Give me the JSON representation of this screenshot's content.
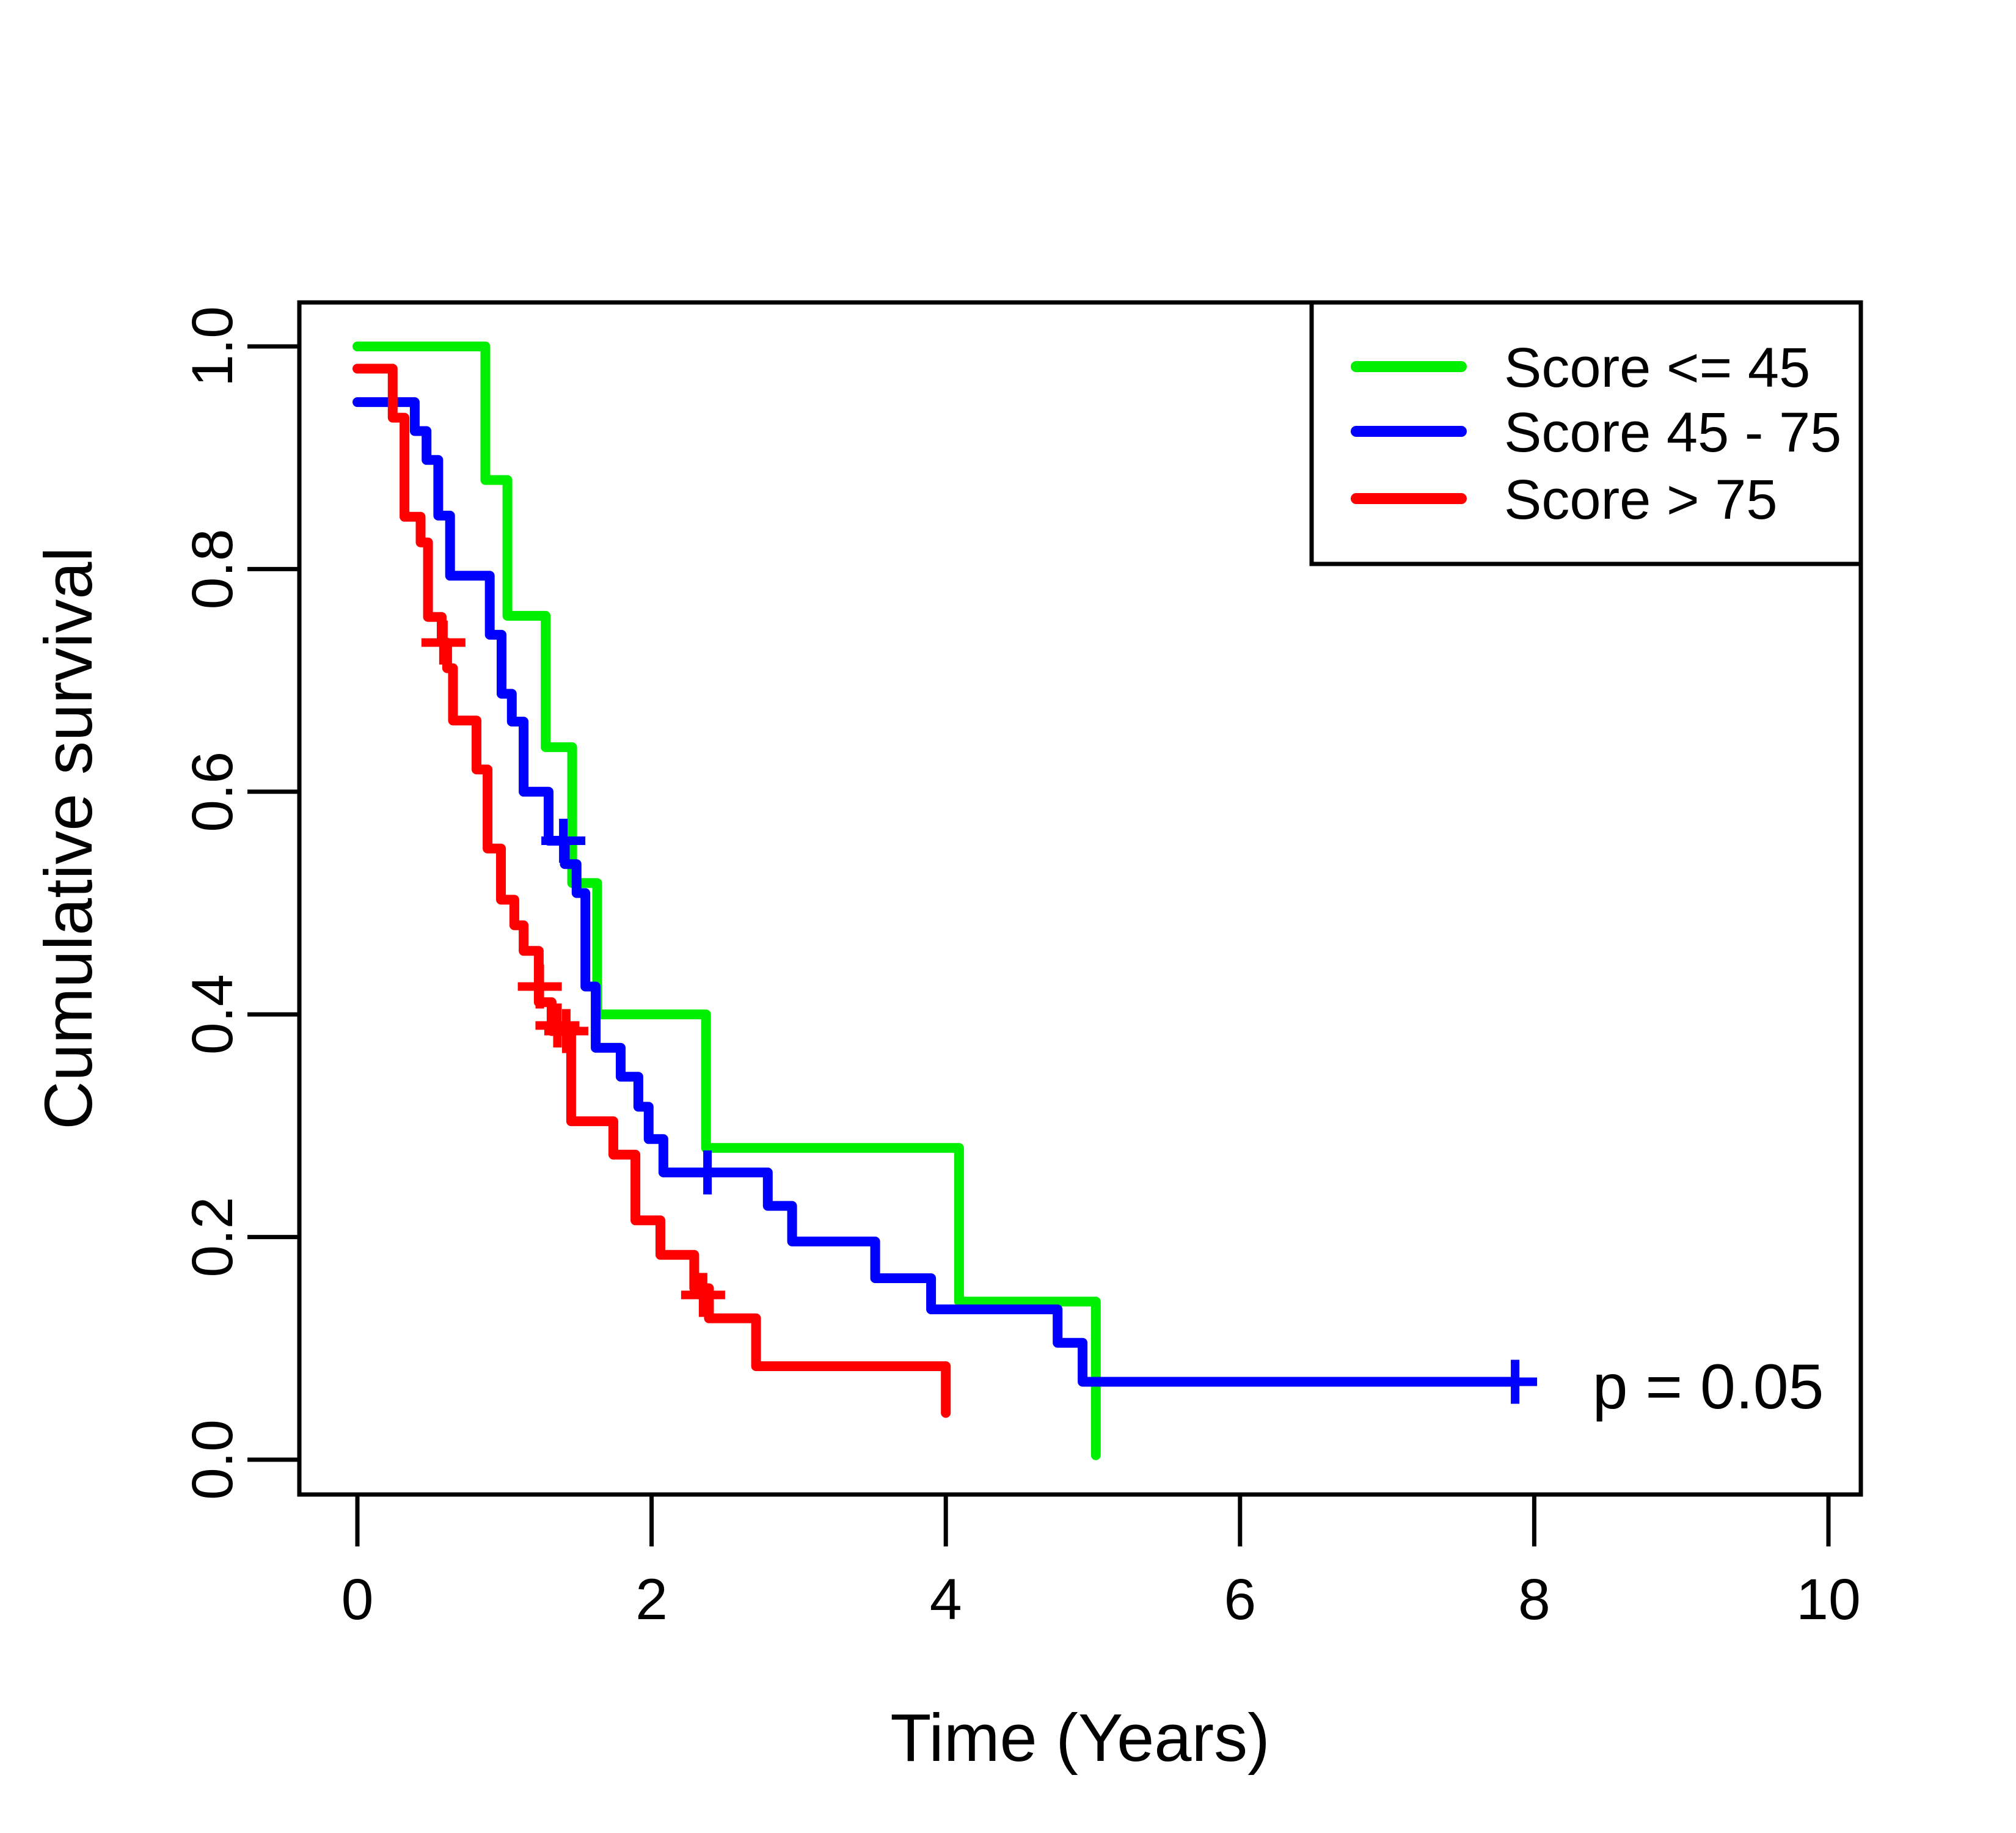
{
  "chart_data": {
    "type": "line",
    "subtype": "kaplan-meier-step-curves",
    "title": "",
    "xlabel": "Time (Years)",
    "ylabel": "Cumulative survival",
    "annotation": "p = 0.05",
    "xlim": [
      0,
      10
    ],
    "ylim": [
      0.0,
      1.0
    ],
    "x_ticks": [
      "0",
      "2",
      "4",
      "6",
      "8",
      "10"
    ],
    "x_tick_values": [
      0,
      2,
      4,
      6,
      8,
      10
    ],
    "y_ticks": [
      "0.0",
      "0.2",
      "0.4",
      "0.6",
      "0.8",
      "1.0"
    ],
    "y_tick_values": [
      0.0,
      0.2,
      0.4,
      0.6,
      0.8,
      1.0
    ],
    "grid": false,
    "legend_position": "top-right",
    "series": [
      {
        "name": "Score <= 45",
        "color": "#00ee00",
        "points": [
          [
            0,
            1.0
          ],
          [
            0.87,
            1.0
          ],
          [
            0.87,
            0.88
          ],
          [
            1.02,
            0.88
          ],
          [
            1.02,
            0.758
          ],
          [
            1.28,
            0.758
          ],
          [
            1.28,
            0.64
          ],
          [
            1.46,
            0.64
          ],
          [
            1.46,
            0.518
          ],
          [
            1.63,
            0.518
          ],
          [
            1.63,
            0.4
          ],
          [
            2.37,
            0.4
          ],
          [
            2.37,
            0.28
          ],
          [
            4.09,
            0.28
          ],
          [
            4.09,
            0.142
          ],
          [
            5.02,
            0.142
          ],
          [
            5.02,
            0.004
          ]
        ],
        "censors": []
      },
      {
        "name": "Score 45 - 75",
        "color": "#0000ff",
        "points": [
          [
            0,
            0.95
          ],
          [
            0.39,
            0.95
          ],
          [
            0.39,
            0.924
          ],
          [
            0.47,
            0.924
          ],
          [
            0.47,
            0.898
          ],
          [
            0.55,
            0.898
          ],
          [
            0.55,
            0.848
          ],
          [
            0.63,
            0.848
          ],
          [
            0.63,
            0.794
          ],
          [
            0.9,
            0.794
          ],
          [
            0.9,
            0.741
          ],
          [
            0.98,
            0.741
          ],
          [
            0.98,
            0.688
          ],
          [
            1.05,
            0.688
          ],
          [
            1.05,
            0.663
          ],
          [
            1.13,
            0.663
          ],
          [
            1.13,
            0.6
          ],
          [
            1.3,
            0.6
          ],
          [
            1.3,
            0.556
          ],
          [
            1.41,
            0.556
          ],
          [
            1.41,
            0.535
          ],
          [
            1.49,
            0.535
          ],
          [
            1.49,
            0.509
          ],
          [
            1.55,
            0.509
          ],
          [
            1.55,
            0.425
          ],
          [
            1.62,
            0.425
          ],
          [
            1.62,
            0.37
          ],
          [
            1.79,
            0.37
          ],
          [
            1.79,
            0.344
          ],
          [
            1.91,
            0.344
          ],
          [
            1.91,
            0.317
          ],
          [
            1.98,
            0.317
          ],
          [
            1.98,
            0.288
          ],
          [
            2.08,
            0.288
          ],
          [
            2.08,
            0.258
          ],
          [
            2.79,
            0.258
          ],
          [
            2.79,
            0.228
          ],
          [
            2.955,
            0.228
          ],
          [
            2.955,
            0.196
          ],
          [
            3.52,
            0.196
          ],
          [
            3.52,
            0.163
          ],
          [
            3.9,
            0.163
          ],
          [
            3.9,
            0.135
          ],
          [
            4.76,
            0.135
          ],
          [
            4.76,
            0.105
          ],
          [
            4.93,
            0.105
          ],
          [
            4.93,
            0.07
          ],
          [
            7.87,
            0.07
          ]
        ],
        "censors": [
          [
            1.4,
            0.556
          ],
          [
            2.38,
            0.258
          ],
          [
            7.87,
            0.07
          ]
        ]
      },
      {
        "name": "Score > 75",
        "color": "#ff0000",
        "points": [
          [
            0,
            0.98
          ],
          [
            0.24,
            0.98
          ],
          [
            0.24,
            0.936
          ],
          [
            0.32,
            0.936
          ],
          [
            0.32,
            0.847
          ],
          [
            0.43,
            0.847
          ],
          [
            0.43,
            0.824
          ],
          [
            0.48,
            0.824
          ],
          [
            0.48,
            0.757
          ],
          [
            0.573,
            0.757
          ],
          [
            0.573,
            0.734
          ],
          [
            0.61,
            0.734
          ],
          [
            0.61,
            0.711
          ],
          [
            0.65,
            0.711
          ],
          [
            0.65,
            0.664
          ],
          [
            0.81,
            0.664
          ],
          [
            0.81,
            0.62
          ],
          [
            0.885,
            0.62
          ],
          [
            0.885,
            0.549
          ],
          [
            0.976,
            0.549
          ],
          [
            0.976,
            0.503
          ],
          [
            1.067,
            0.503
          ],
          [
            1.067,
            0.48
          ],
          [
            1.13,
            0.48
          ],
          [
            1.13,
            0.457
          ],
          [
            1.233,
            0.457
          ],
          [
            1.233,
            0.411
          ],
          [
            1.32,
            0.411
          ],
          [
            1.32,
            0.385
          ],
          [
            1.453,
            0.385
          ],
          [
            1.453,
            0.304
          ],
          [
            1.74,
            0.304
          ],
          [
            1.74,
            0.274
          ],
          [
            1.89,
            0.274
          ],
          [
            1.89,
            0.215
          ],
          [
            2.06,
            0.215
          ],
          [
            2.06,
            0.184
          ],
          [
            2.29,
            0.184
          ],
          [
            2.29,
            0.154
          ],
          [
            2.39,
            0.154
          ],
          [
            2.39,
            0.127
          ],
          [
            2.71,
            0.127
          ],
          [
            2.71,
            0.084
          ],
          [
            4.0,
            0.084
          ],
          [
            4.0,
            0.042
          ]
        ],
        "censors": [
          [
            0.585,
            0.734
          ],
          [
            1.24,
            0.425
          ],
          [
            1.36,
            0.39
          ],
          [
            1.42,
            0.385
          ],
          [
            2.35,
            0.148
          ]
        ]
      }
    ]
  }
}
